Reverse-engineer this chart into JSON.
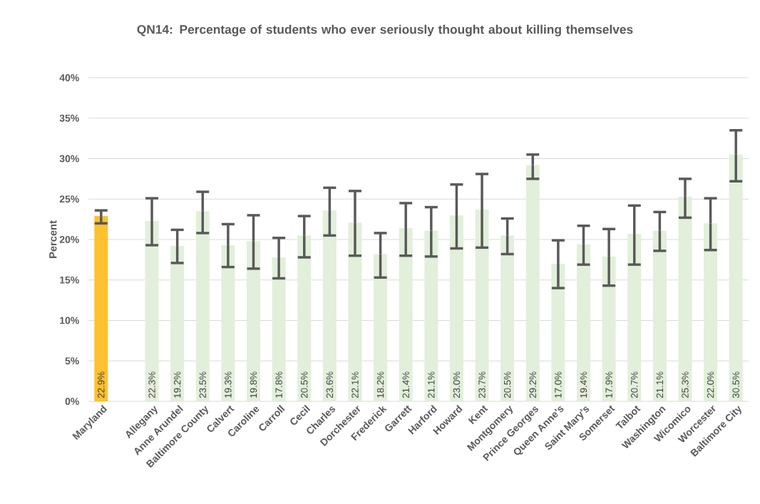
{
  "chart_data": {
    "type": "bar",
    "title": "QN14: Percentage of students who ever seriously thought about killing themselves",
    "ylabel": "Percent",
    "categories": [
      "Maryland",
      null,
      "Allegany",
      "Anne Arundel",
      "Baltimore County",
      "Calvert",
      "Caroline",
      "Carroll",
      "Cecil",
      "Charles",
      "Dorchester",
      "Frederick",
      "Garrett",
      "Harford",
      "Howard",
      "Kent",
      "Montgomery",
      "Prince Georges",
      "Queen Anne's",
      "Saint Mary's",
      "Somerset",
      "Talbot",
      "Washington",
      "Wicomico",
      "Worcester",
      "Baltimore City"
    ],
    "values": [
      22.9,
      null,
      22.3,
      19.2,
      23.5,
      19.3,
      19.8,
      17.8,
      20.5,
      23.6,
      22.1,
      18.2,
      21.4,
      21.1,
      23.0,
      23.7,
      20.5,
      29.2,
      17.0,
      19.4,
      17.9,
      20.7,
      21.1,
      25.3,
      22.0,
      30.5
    ],
    "value_labels": [
      "22.9%",
      null,
      "22.3%",
      "19.2%",
      "23.5%",
      "19.3%",
      "19.8%",
      "17.8%",
      "20.5%",
      "23.6%",
      "22.1%",
      "18.2%",
      "21.4%",
      "21.1%",
      "23.0%",
      "23.7%",
      "20.5%",
      "29.2%",
      "17.0%",
      "19.4%",
      "17.9%",
      "20.7%",
      "21.1%",
      "25.3%",
      "22.0%",
      "30.5%"
    ],
    "errors": [
      [
        22.0,
        23.6
      ],
      null,
      [
        19.3,
        25.1
      ],
      [
        17.1,
        21.2
      ],
      [
        20.8,
        25.9
      ],
      [
        16.6,
        21.9
      ],
      [
        16.4,
        23.0
      ],
      [
        15.2,
        20.2
      ],
      [
        17.8,
        22.9
      ],
      [
        20.5,
        26.4
      ],
      [
        18.0,
        26.0
      ],
      [
        15.3,
        20.8
      ],
      [
        18.0,
        24.5
      ],
      [
        17.9,
        24.0
      ],
      [
        18.9,
        26.8
      ],
      [
        19.0,
        28.1
      ],
      [
        18.2,
        22.6
      ],
      [
        27.5,
        30.5
      ],
      [
        14.0,
        19.9
      ],
      [
        16.9,
        21.7
      ],
      [
        14.3,
        21.3
      ],
      [
        16.9,
        24.2
      ],
      [
        18.6,
        23.4
      ],
      [
        22.7,
        27.5
      ],
      [
        18.7,
        25.1
      ],
      [
        27.2,
        33.5
      ]
    ],
    "colors": [
      "#ffc12f",
      null,
      "#e2efda",
      "#e2efda",
      "#e2efda",
      "#e2efda",
      "#e2efda",
      "#e2efda",
      "#e2efda",
      "#e2efda",
      "#e2efda",
      "#e2efda",
      "#e2efda",
      "#e2efda",
      "#e2efda",
      "#e2efda",
      "#e2efda",
      "#e2efda",
      "#e2efda",
      "#e2efda",
      "#e2efda",
      "#e2efda",
      "#e2efda",
      "#e2efda",
      "#e2efda",
      "#e2efda"
    ],
    "ylim": [
      0,
      40
    ],
    "yticks": [
      {
        "value": 0,
        "label": "0%"
      },
      {
        "value": 5,
        "label": "5%"
      },
      {
        "value": 10,
        "label": "10%"
      },
      {
        "value": 15,
        "label": "15%"
      },
      {
        "value": 20,
        "label": "20%"
      },
      {
        "value": 25,
        "label": "25%"
      },
      {
        "value": 30,
        "label": "30%"
      },
      {
        "value": 35,
        "label": "35%"
      },
      {
        "value": 40,
        "label": "40%"
      }
    ],
    "grid": "y"
  }
}
